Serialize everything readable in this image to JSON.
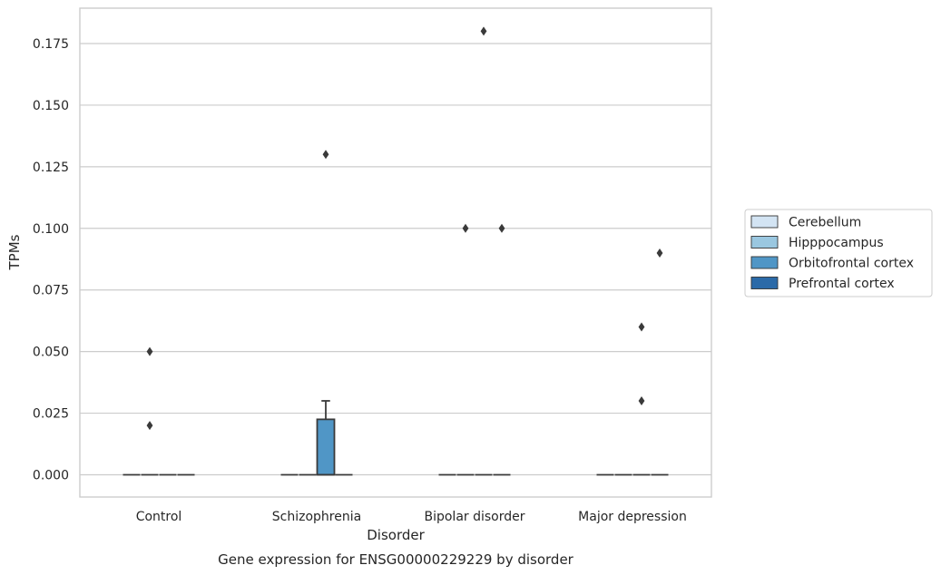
{
  "chart_data": {
    "type": "box",
    "title": "Gene expression for ENSG00000229229 by disorder",
    "xlabel": "Disorder",
    "ylabel": "TPMs",
    "categories": [
      "Control",
      "Schizophrenia",
      "Bipolar disorder",
      "Major depression"
    ],
    "ylim": [
      -0.0085,
      0.188
    ],
    "yticks": [
      "0.000",
      "0.025",
      "0.050",
      "0.075",
      "0.100",
      "0.125",
      "0.150",
      "0.175"
    ],
    "grid": "horizontal",
    "legend_position": "right",
    "series": [
      {
        "name": "Cerebellum",
        "color": "#d3e4f3",
        "boxes": [
          {
            "q1": 0,
            "median": 0,
            "q3": 0,
            "whisker_low": 0,
            "whisker_high": 0,
            "outliers": []
          },
          {
            "q1": 0,
            "median": 0,
            "q3": 0,
            "whisker_low": 0,
            "whisker_high": 0,
            "outliers": []
          },
          {
            "q1": 0,
            "median": 0,
            "q3": 0,
            "whisker_low": 0,
            "whisker_high": 0,
            "outliers": []
          },
          {
            "q1": 0,
            "median": 0,
            "q3": 0,
            "whisker_low": 0,
            "whisker_high": 0,
            "outliers": []
          }
        ]
      },
      {
        "name": "Hipppocampus",
        "color": "#9ac7e0",
        "boxes": [
          {
            "q1": 0,
            "median": 0,
            "q3": 0,
            "whisker_low": 0,
            "whisker_high": 0,
            "outliers": [
              0.02,
              0.05
            ]
          },
          {
            "q1": 0,
            "median": 0,
            "q3": 0,
            "whisker_low": 0,
            "whisker_high": 0,
            "outliers": []
          },
          {
            "q1": 0,
            "median": 0,
            "q3": 0,
            "whisker_low": 0,
            "whisker_high": 0,
            "outliers": [
              0.1
            ]
          },
          {
            "q1": 0,
            "median": 0,
            "q3": 0,
            "whisker_low": 0,
            "whisker_high": 0,
            "outliers": []
          }
        ]
      },
      {
        "name": "Orbitofrontal cortex",
        "color": "#5096c6",
        "boxes": [
          {
            "q1": 0,
            "median": 0,
            "q3": 0,
            "whisker_low": 0,
            "whisker_high": 0,
            "outliers": []
          },
          {
            "q1": 0,
            "median": 0,
            "q3": 0.0225,
            "whisker_low": 0,
            "whisker_high": 0.03,
            "outliers": [
              0.13
            ]
          },
          {
            "q1": 0,
            "median": 0,
            "q3": 0,
            "whisker_low": 0,
            "whisker_high": 0,
            "outliers": [
              0.18
            ]
          },
          {
            "q1": 0,
            "median": 0,
            "q3": 0,
            "whisker_low": 0,
            "whisker_high": 0,
            "outliers": [
              0.03,
              0.06
            ]
          }
        ]
      },
      {
        "name": "Prefrontal cortex",
        "color": "#2b6aa8",
        "boxes": [
          {
            "q1": 0,
            "median": 0,
            "q3": 0,
            "whisker_low": 0,
            "whisker_high": 0,
            "outliers": []
          },
          {
            "q1": 0,
            "median": 0,
            "q3": 0,
            "whisker_low": 0,
            "whisker_high": 0,
            "outliers": []
          },
          {
            "q1": 0,
            "median": 0,
            "q3": 0,
            "whisker_low": 0,
            "whisker_high": 0,
            "outliers": [
              0.1
            ]
          },
          {
            "q1": 0,
            "median": 0,
            "q3": 0,
            "whisker_low": 0,
            "whisker_high": 0,
            "outliers": [
              0.09
            ]
          }
        ]
      }
    ]
  }
}
